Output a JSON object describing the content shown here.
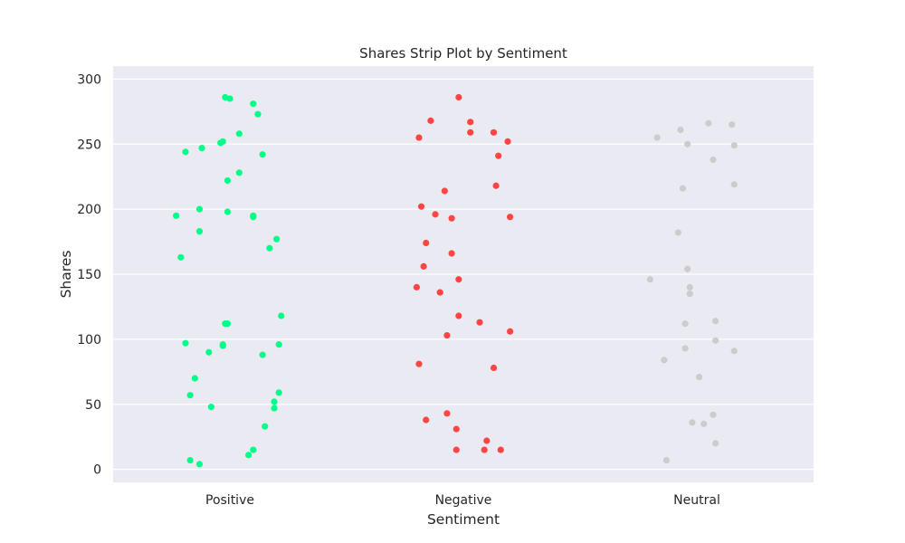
{
  "chart_data": {
    "type": "scatter",
    "subtype": "strip",
    "title": "Shares Strip Plot by Sentiment",
    "xlabel": "Sentiment",
    "ylabel": "Shares",
    "ylim": [
      -10,
      310
    ],
    "yticks": [
      0,
      50,
      100,
      150,
      200,
      250,
      300
    ],
    "grid": true,
    "background": "#eaeaf2",
    "categories": [
      "Positive",
      "Negative",
      "Neutral"
    ],
    "series": [
      {
        "category": "Positive",
        "color": "#00ff88",
        "points": [
          {
            "j": -0.02,
            "y": 286
          },
          {
            "j": 0.0,
            "y": 285
          },
          {
            "j": 0.1,
            "y": 281
          },
          {
            "j": 0.12,
            "y": 273
          },
          {
            "j": 0.04,
            "y": 258
          },
          {
            "j": -0.03,
            "y": 252
          },
          {
            "j": -0.04,
            "y": 251
          },
          {
            "j": -0.12,
            "y": 247
          },
          {
            "j": -0.19,
            "y": 244
          },
          {
            "j": 0.14,
            "y": 242
          },
          {
            "j": 0.04,
            "y": 228
          },
          {
            "j": -0.01,
            "y": 222
          },
          {
            "j": -0.13,
            "y": 200
          },
          {
            "j": -0.01,
            "y": 198
          },
          {
            "j": 0.1,
            "y": 195
          },
          {
            "j": -0.23,
            "y": 195
          },
          {
            "j": 0.1,
            "y": 194
          },
          {
            "j": -0.13,
            "y": 183
          },
          {
            "j": 0.2,
            "y": 177
          },
          {
            "j": 0.17,
            "y": 170
          },
          {
            "j": -0.21,
            "y": 163
          },
          {
            "j": 0.22,
            "y": 118
          },
          {
            "j": -0.01,
            "y": 112
          },
          {
            "j": -0.02,
            "y": 112
          },
          {
            "j": -0.19,
            "y": 97
          },
          {
            "j": 0.21,
            "y": 96
          },
          {
            "j": -0.03,
            "y": 96
          },
          {
            "j": -0.03,
            "y": 95
          },
          {
            "j": -0.09,
            "y": 90
          },
          {
            "j": 0.14,
            "y": 88
          },
          {
            "j": -0.15,
            "y": 70
          },
          {
            "j": 0.21,
            "y": 59
          },
          {
            "j": -0.17,
            "y": 57
          },
          {
            "j": 0.19,
            "y": 52
          },
          {
            "j": -0.08,
            "y": 48
          },
          {
            "j": 0.19,
            "y": 47
          },
          {
            "j": 0.15,
            "y": 33
          },
          {
            "j": 0.1,
            "y": 15
          },
          {
            "j": 0.08,
            "y": 11
          },
          {
            "j": -0.17,
            "y": 7
          },
          {
            "j": -0.13,
            "y": 4
          }
        ]
      },
      {
        "category": "Negative",
        "color": "#ff4444",
        "points": [
          {
            "j": -0.02,
            "y": 286
          },
          {
            "j": -0.14,
            "y": 268
          },
          {
            "j": 0.03,
            "y": 267
          },
          {
            "j": 0.03,
            "y": 259
          },
          {
            "j": 0.13,
            "y": 259
          },
          {
            "j": -0.19,
            "y": 255
          },
          {
            "j": 0.19,
            "y": 252
          },
          {
            "j": 0.15,
            "y": 241
          },
          {
            "j": 0.14,
            "y": 218
          },
          {
            "j": -0.08,
            "y": 214
          },
          {
            "j": -0.18,
            "y": 202
          },
          {
            "j": -0.12,
            "y": 196
          },
          {
            "j": 0.2,
            "y": 194
          },
          {
            "j": -0.05,
            "y": 193
          },
          {
            "j": -0.16,
            "y": 174
          },
          {
            "j": -0.05,
            "y": 166
          },
          {
            "j": -0.17,
            "y": 156
          },
          {
            "j": -0.02,
            "y": 146
          },
          {
            "j": -0.2,
            "y": 140
          },
          {
            "j": -0.1,
            "y": 136
          },
          {
            "j": -0.02,
            "y": 118
          },
          {
            "j": 0.07,
            "y": 113
          },
          {
            "j": 0.2,
            "y": 106
          },
          {
            "j": -0.07,
            "y": 103
          },
          {
            "j": -0.19,
            "y": 81
          },
          {
            "j": 0.13,
            "y": 78
          },
          {
            "j": -0.07,
            "y": 43
          },
          {
            "j": -0.16,
            "y": 38
          },
          {
            "j": -0.03,
            "y": 31
          },
          {
            "j": 0.1,
            "y": 22
          },
          {
            "j": -0.03,
            "y": 15
          },
          {
            "j": 0.09,
            "y": 15
          },
          {
            "j": 0.16,
            "y": 15
          }
        ]
      },
      {
        "category": "Neutral",
        "color": "#cccccc",
        "points": [
          {
            "j": 0.05,
            "y": 266
          },
          {
            "j": 0.15,
            "y": 265
          },
          {
            "j": -0.07,
            "y": 261
          },
          {
            "j": -0.17,
            "y": 255
          },
          {
            "j": -0.04,
            "y": 250
          },
          {
            "j": 0.16,
            "y": 249
          },
          {
            "j": 0.07,
            "y": 238
          },
          {
            "j": 0.16,
            "y": 219
          },
          {
            "j": -0.06,
            "y": 216
          },
          {
            "j": -0.08,
            "y": 182
          },
          {
            "j": -0.04,
            "y": 154
          },
          {
            "j": -0.2,
            "y": 146
          },
          {
            "j": -0.03,
            "y": 140
          },
          {
            "j": -0.03,
            "y": 135
          },
          {
            "j": 0.08,
            "y": 114
          },
          {
            "j": -0.05,
            "y": 112
          },
          {
            "j": 0.08,
            "y": 99
          },
          {
            "j": -0.05,
            "y": 93
          },
          {
            "j": 0.16,
            "y": 91
          },
          {
            "j": -0.14,
            "y": 84
          },
          {
            "j": 0.01,
            "y": 71
          },
          {
            "j": 0.07,
            "y": 42
          },
          {
            "j": -0.02,
            "y": 36
          },
          {
            "j": 0.03,
            "y": 35
          },
          {
            "j": 0.08,
            "y": 20
          },
          {
            "j": -0.13,
            "y": 7
          }
        ]
      }
    ]
  }
}
